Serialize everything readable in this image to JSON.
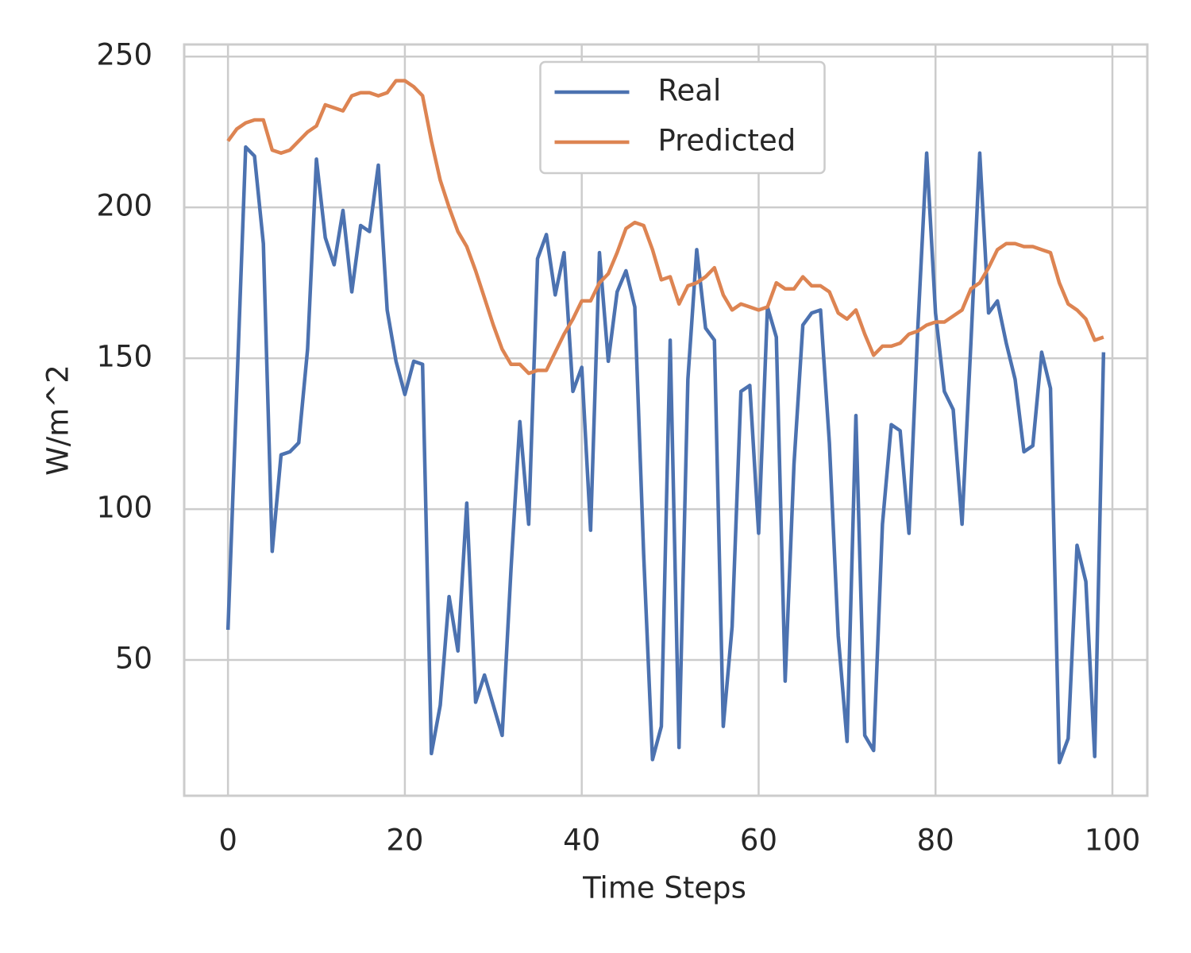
{
  "chart_data": {
    "type": "line",
    "x_label": "Time Steps",
    "y_label": "W/m^2",
    "x": [
      0,
      1,
      2,
      3,
      4,
      5,
      6,
      7,
      8,
      9,
      10,
      11,
      12,
      13,
      14,
      15,
      16,
      17,
      18,
      19,
      20,
      21,
      22,
      23,
      24,
      25,
      26,
      27,
      28,
      29,
      30,
      31,
      32,
      33,
      34,
      35,
      36,
      37,
      38,
      39,
      40,
      41,
      42,
      43,
      44,
      45,
      46,
      47,
      48,
      49,
      50,
      51,
      52,
      53,
      54,
      55,
      56,
      57,
      58,
      59,
      60,
      61,
      62,
      63,
      64,
      65,
      66,
      67,
      68,
      69,
      70,
      71,
      72,
      73,
      74,
      75,
      76,
      77,
      78,
      79,
      80,
      81,
      82,
      83,
      84,
      85,
      86,
      87,
      88,
      89,
      90,
      91,
      92,
      93,
      94,
      95,
      96,
      97,
      98,
      99
    ],
    "series": [
      {
        "name": "Real",
        "color": "#4c72b0",
        "values": [
          60,
          140,
          220,
          217,
          188,
          86,
          118,
          119,
          122,
          153,
          216,
          190,
          181,
          199,
          172,
          194,
          192,
          214,
          166,
          149,
          138,
          149,
          148,
          19,
          35,
          71,
          53,
          102,
          36,
          45,
          35,
          25,
          80,
          129,
          95,
          183,
          191,
          171,
          185,
          139,
          147,
          93,
          185,
          149,
          172,
          179,
          167,
          85,
          17,
          28,
          156,
          21,
          143,
          186,
          160,
          156,
          28,
          61,
          139,
          141,
          92,
          167,
          157,
          43,
          115,
          161,
          165,
          166,
          122,
          58,
          23,
          131,
          25,
          20,
          95,
          128,
          126,
          92,
          160,
          218,
          165,
          139,
          133,
          95,
          155,
          218,
          165,
          169,
          155,
          143,
          119,
          121,
          152,
          140,
          16,
          24,
          88,
          76,
          18,
          152
        ]
      },
      {
        "name": "Predicted",
        "color": "#dd8452",
        "values": [
          222,
          226,
          228,
          229,
          229,
          219,
          218,
          219,
          222,
          225,
          227,
          234,
          233,
          232,
          237,
          238,
          238,
          237,
          238,
          242,
          242,
          240,
          237,
          222,
          209,
          200,
          192,
          187,
          179,
          170,
          161,
          153,
          148,
          148,
          145,
          146,
          146,
          152,
          158,
          163,
          169,
          169,
          175,
          178,
          185,
          193,
          195,
          194,
          186,
          176,
          177,
          168,
          174,
          175,
          177,
          180,
          171,
          166,
          168,
          167,
          166,
          167,
          175,
          173,
          173,
          177,
          174,
          174,
          172,
          165,
          163,
          166,
          158,
          151,
          154,
          154,
          155,
          158,
          159,
          161,
          162,
          162,
          164,
          166,
          173,
          175,
          180,
          186,
          188,
          188,
          187,
          187,
          186,
          185,
          175,
          168,
          166,
          163,
          156,
          157
        ]
      }
    ],
    "xlim": [
      -4.95,
      103.95
    ],
    "ylim": [
      5,
      254
    ],
    "xticks": [
      0,
      20,
      40,
      60,
      80,
      100
    ],
    "yticks": [
      50,
      100,
      150,
      200,
      250
    ],
    "grid": true,
    "legend": "upper center"
  }
}
